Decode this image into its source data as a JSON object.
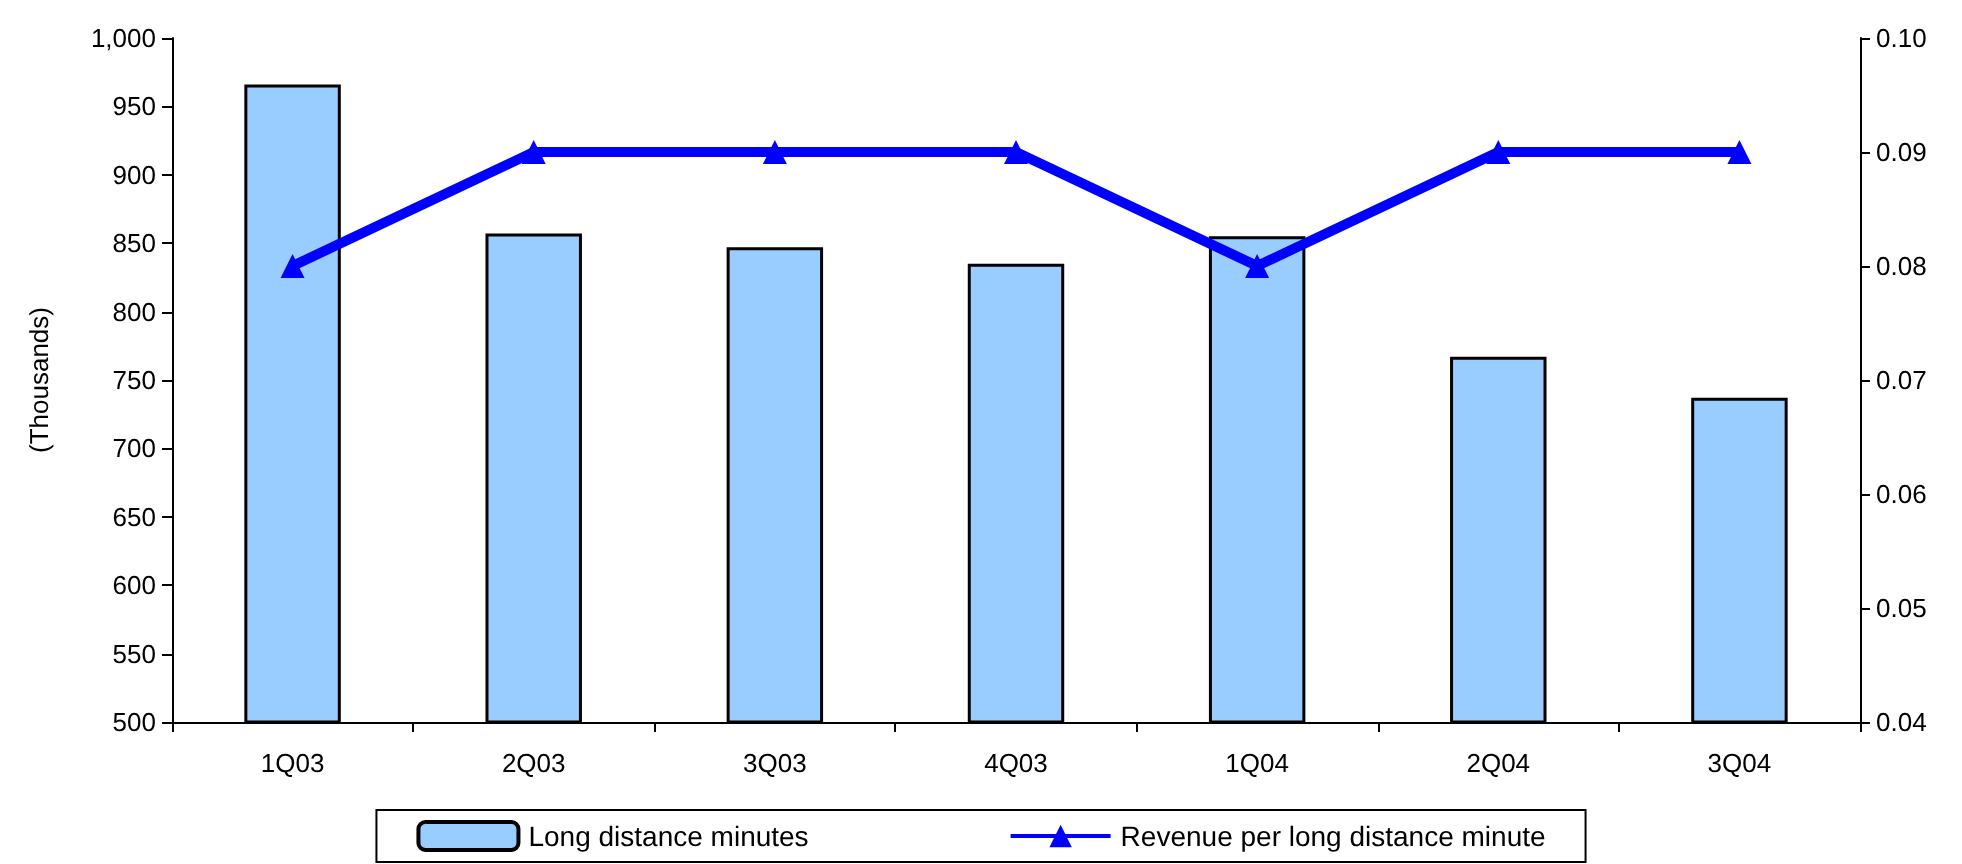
{
  "chart_data": {
    "type": "bar",
    "ylabel": "(Thousands)",
    "categories": [
      "1Q03",
      "2Q03",
      "3Q03",
      "4Q03",
      "1Q04",
      "2Q04",
      "3Q04"
    ],
    "series": [
      {
        "name": "Long distance minutes",
        "color": "#99ccff",
        "values": [
          966,
          857,
          847,
          835,
          855,
          767,
          737
        ]
      },
      {
        "name": "Revenue per long distance minute",
        "type": "line",
        "axis": "y2",
        "color": "#0000ff",
        "marker": "triangle",
        "values": [
          0.08,
          0.09,
          0.09,
          0.09,
          0.08,
          0.09,
          0.09
        ]
      }
    ],
    "ylim": [
      500,
      1000
    ],
    "yticks": [
      500,
      550,
      600,
      650,
      700,
      750,
      800,
      850,
      900,
      950,
      {
        "value": 1000,
        "label": "1,000"
      }
    ],
    "y2lim": [
      0.04,
      0.1
    ],
    "y2ticks": [
      0.04,
      0.05,
      0.06,
      0.07,
      0.08,
      0.09,
      {
        "value": 0.1,
        "label": "0.10"
      }
    ],
    "grid": false,
    "legend": "bottom"
  }
}
